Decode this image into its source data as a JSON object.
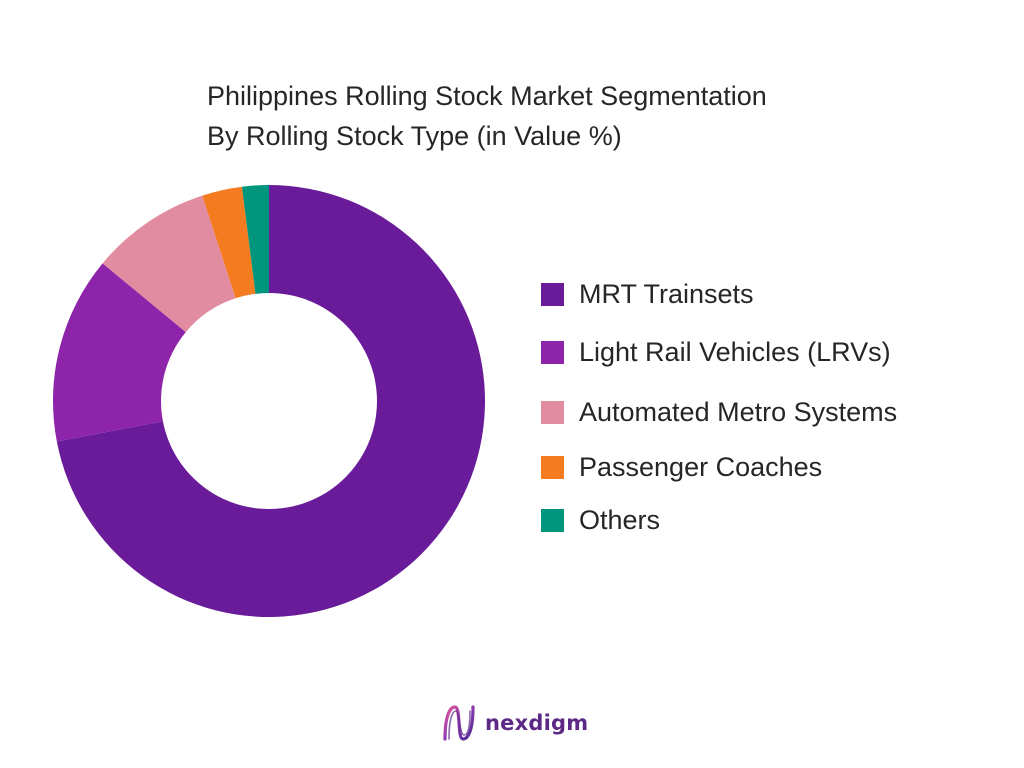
{
  "title": {
    "line1": "Philippines Rolling Stock Market Segmentation",
    "line2": "By Rolling Stock Type (in Value %)"
  },
  "chart_data": {
    "type": "pie",
    "variant": "donut",
    "title": "Philippines Rolling Stock Market Segmentation By Rolling Stock Type (in Value %)",
    "categories": [
      "MRT Trainsets",
      "Light Rail Vehicles (LRVs)",
      "Automated Metro Systems",
      "Passenger Coaches",
      "Others"
    ],
    "values": [
      72,
      14,
      9,
      3,
      2
    ],
    "colors": [
      "#691b9a",
      "#8e24aa",
      "#e28ca1",
      "#f47b20",
      "#00957d"
    ],
    "legend": "right"
  },
  "brand": {
    "name": "nexdigm",
    "color": "#5c2a86",
    "icon": "nexdigm-logo-icon"
  }
}
